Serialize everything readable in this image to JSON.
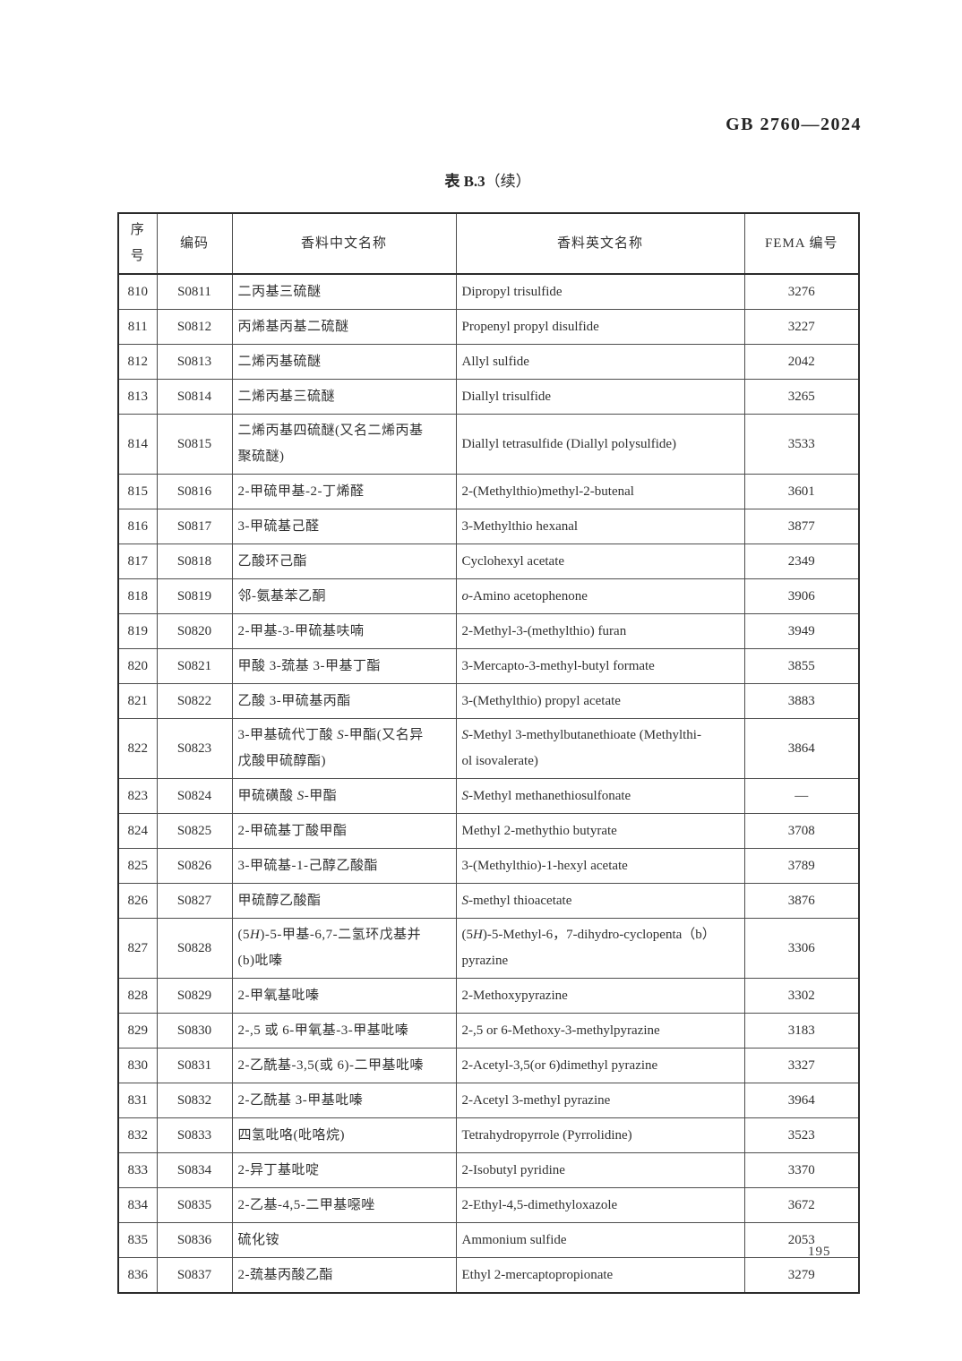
{
  "page": {
    "standard_code": "GB 2760—2024",
    "page_number": "195"
  },
  "table": {
    "title_prefix": "表 B.3",
    "title_suffix": "（续）",
    "headers": [
      "序号",
      "编码",
      "香料中文名称",
      "香料英文名称",
      "FEMA 编号"
    ],
    "rows": [
      {
        "no": "810",
        "code": "S0811",
        "cn": "二丙基三硫醚",
        "en": "Dipropyl trisulfide",
        "fema": "3276"
      },
      {
        "no": "811",
        "code": "S0812",
        "cn": "丙烯基丙基二硫醚",
        "en": "Propenyl propyl disulfide",
        "fema": "3227"
      },
      {
        "no": "812",
        "code": "S0813",
        "cn": "二烯丙基硫醚",
        "en": "Allyl sulfide",
        "fema": "2042"
      },
      {
        "no": "813",
        "code": "S0814",
        "cn": "二烯丙基三硫醚",
        "en": "Diallyl trisulfide",
        "fema": "3265"
      },
      {
        "no": "814",
        "code": "S0815",
        "cn": "二烯丙基四硫醚(又名二烯丙基\n聚硫醚)",
        "en": "Diallyl tetrasulfide (Diallyl polysulfide)",
        "fema": "3533"
      },
      {
        "no": "815",
        "code": "S0816",
        "cn": "2-甲硫甲基-2-丁烯醛",
        "en": "2-(Methylthio)methyl-2-butenal",
        "fema": "3601"
      },
      {
        "no": "816",
        "code": "S0817",
        "cn": "3-甲硫基己醛",
        "en": "3-Methylthio hexanal",
        "fema": "3877"
      },
      {
        "no": "817",
        "code": "S0818",
        "cn": "乙酸环己酯",
        "en": "Cyclohexyl acetate",
        "fema": "2349"
      },
      {
        "no": "818",
        "code": "S0819",
        "cn": "邻-氨基苯乙酮",
        "en": "*o*-Amino acetophenone",
        "fema": "3906"
      },
      {
        "no": "819",
        "code": "S0820",
        "cn": "2-甲基-3-甲硫基呋喃",
        "en": "2-Methyl-3-(methylthio) furan",
        "fema": "3949"
      },
      {
        "no": "820",
        "code": "S0821",
        "cn": "甲酸 3-巯基 3-甲基丁酯",
        "en": "3-Mercapto-3-methyl-butyl formate",
        "fema": "3855"
      },
      {
        "no": "821",
        "code": "S0822",
        "cn": "乙酸 3-甲硫基丙酯",
        "en": "3-(Methylthio) propyl acetate",
        "fema": "3883"
      },
      {
        "no": "822",
        "code": "S0823",
        "cn": "3-甲基硫代丁酸 *S*-甲酯(又名异\n戊酸甲硫醇酯)",
        "en": "*S*-Methyl 3-methylbutanethioate (Methylthi-\nol isovalerate)",
        "fema": "3864"
      },
      {
        "no": "823",
        "code": "S0824",
        "cn": "甲硫磺酸 *S*-甲酯",
        "en": "*S*-Methyl methanethiosulfonate",
        "fema": "—"
      },
      {
        "no": "824",
        "code": "S0825",
        "cn": "2-甲硫基丁酸甲酯",
        "en": "Methyl 2-methythio butyrate",
        "fema": "3708"
      },
      {
        "no": "825",
        "code": "S0826",
        "cn": "3-甲硫基-1-己醇乙酸酯",
        "en": "3-(Methylthio)-1-hexyl acetate",
        "fema": "3789"
      },
      {
        "no": "826",
        "code": "S0827",
        "cn": "甲硫醇乙酸酯",
        "en": "*S*-methyl thioacetate",
        "fema": "3876"
      },
      {
        "no": "827",
        "code": "S0828",
        "cn": "(5*H*)-5-甲基-6,7-二氢环戊基并\n(b)吡嗪",
        "en": "(5*H*)-5-Methyl-6，7-dihydro-cyclopenta（b）\npyrazine",
        "fema": "3306"
      },
      {
        "no": "828",
        "code": "S0829",
        "cn": "2-甲氧基吡嗪",
        "en": "2-Methoxypyrazine",
        "fema": "3302"
      },
      {
        "no": "829",
        "code": "S0830",
        "cn": "2-,5 或 6-甲氧基-3-甲基吡嗪",
        "en": "2-,5 or 6-Methoxy-3-methylpyrazine",
        "fema": "3183"
      },
      {
        "no": "830",
        "code": "S0831",
        "cn": "2-乙酰基-3,5(或 6)-二甲基吡嗪",
        "en": "2-Acetyl-3,5(or 6)dimethyl pyrazine",
        "fema": "3327"
      },
      {
        "no": "831",
        "code": "S0832",
        "cn": "2-乙酰基 3-甲基吡嗪",
        "en": "2-Acetyl 3-methyl pyrazine",
        "fema": "3964"
      },
      {
        "no": "832",
        "code": "S0833",
        "cn": "四氢吡咯(吡咯烷)",
        "en": "Tetrahydropyrrole (Pyrrolidine)",
        "fema": "3523"
      },
      {
        "no": "833",
        "code": "S0834",
        "cn": "2-异丁基吡啶",
        "en": "2-Isobutyl pyridine",
        "fema": "3370"
      },
      {
        "no": "834",
        "code": "S0835",
        "cn": "2-乙基-4,5-二甲基噁唑",
        "en": "2-Ethyl-4,5-dimethyloxazole",
        "fema": "3672"
      },
      {
        "no": "835",
        "code": "S0836",
        "cn": "硫化铵",
        "en": "Ammonium sulfide",
        "fema": "2053"
      },
      {
        "no": "836",
        "code": "S0837",
        "cn": "2-巯基丙酸乙酯",
        "en": "Ethyl 2-mercaptopropionate",
        "fema": "3279"
      }
    ]
  }
}
